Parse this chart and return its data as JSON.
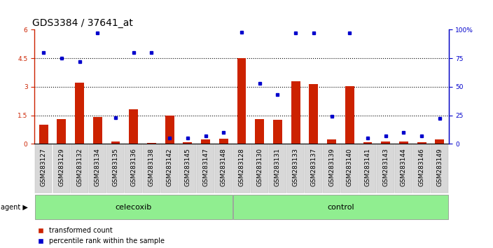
{
  "title": "GDS3384 / 37641_at",
  "samples": [
    "GSM283127",
    "GSM283129",
    "GSM283132",
    "GSM283134",
    "GSM283135",
    "GSM283136",
    "GSM283138",
    "GSM283142",
    "GSM283145",
    "GSM283147",
    "GSM283148",
    "GSM283128",
    "GSM283130",
    "GSM283131",
    "GSM283133",
    "GSM283137",
    "GSM283139",
    "GSM283140",
    "GSM283141",
    "GSM283143",
    "GSM283144",
    "GSM283146",
    "GSM283149"
  ],
  "transformed_count": [
    1.0,
    1.3,
    3.2,
    1.4,
    0.12,
    1.8,
    0.05,
    1.5,
    0.08,
    0.22,
    0.28,
    4.5,
    1.3,
    1.25,
    3.3,
    3.15,
    0.22,
    3.05,
    0.08,
    0.12,
    0.12,
    0.08,
    0.22
  ],
  "percentile_rank": [
    80,
    75,
    72,
    97,
    23,
    80,
    80,
    5,
    5,
    7,
    10,
    98,
    53,
    43,
    97,
    97,
    24,
    97,
    5,
    7,
    10,
    7,
    22
  ],
  "celecoxib_count": 11,
  "control_count": 12,
  "group_labels": [
    "celecoxib",
    "control"
  ],
  "ylim_left": [
    0,
    6
  ],
  "ylim_right": [
    0,
    100
  ],
  "yticks_left": [
    0,
    1.5,
    3.0,
    4.5,
    6
  ],
  "yticks_right": [
    0,
    25,
    50,
    75,
    100
  ],
  "grid_values": [
    1.5,
    3.0,
    4.5
  ],
  "bar_color": "#cc2200",
  "dot_color": "#0000cc",
  "bg_white": "#ffffff",
  "bg_xticklabels": "#d8d8d8",
  "bg_groups": "#90ee90",
  "agent_label": "agent",
  "legend_items": [
    "transformed count",
    "percentile rank within the sample"
  ],
  "title_fontsize": 10,
  "tick_fontsize": 6.5,
  "group_fontsize": 8
}
